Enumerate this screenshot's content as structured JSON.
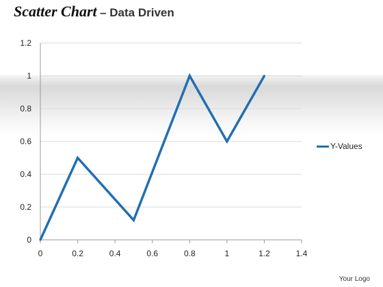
{
  "title": {
    "main": "Scatter Chart",
    "sub": "– Data Driven"
  },
  "footer": {
    "logo_text": "Your Logo"
  },
  "colors": {
    "series": "#1f6fb4",
    "grid": "#d9d9d9",
    "axis": "#999999"
  },
  "chart_data": {
    "type": "scatter",
    "title": "",
    "xlabel": "",
    "ylabel": "",
    "xlim": [
      0,
      1.4
    ],
    "ylim": [
      0,
      1.2
    ],
    "xticks": [
      "0",
      "0.2",
      "0.4",
      "0.6",
      "0.8",
      "1",
      "1.2",
      "1.4"
    ],
    "yticks": [
      "0",
      "0.2",
      "0.4",
      "0.6",
      "0.8",
      "1",
      "1.2"
    ],
    "grid": "horizontal",
    "legend_position": "right",
    "series": [
      {
        "name": "Y-Values",
        "x": [
          0,
          0.2,
          0.5,
          0.8,
          1.0,
          1.2
        ],
        "y": [
          0,
          0.5,
          0.12,
          1.0,
          0.6,
          1.0
        ]
      }
    ]
  }
}
